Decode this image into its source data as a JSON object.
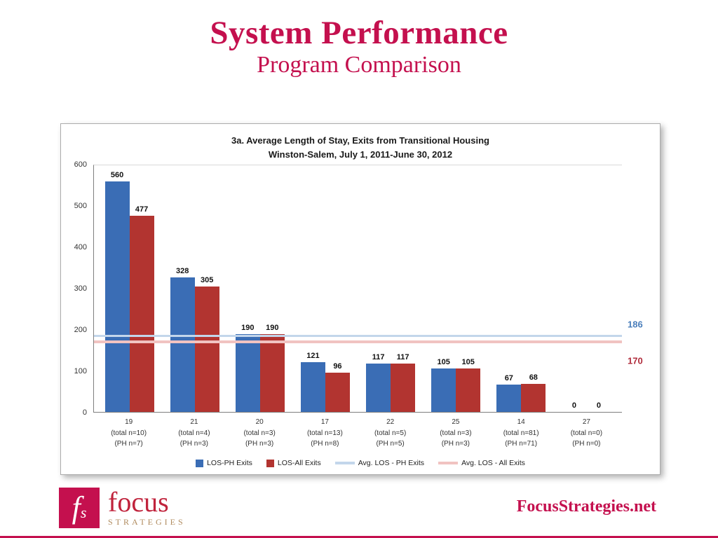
{
  "slide": {
    "title": "System Performance",
    "subtitle": "Program Comparison",
    "site": "FocusStrategies.net",
    "logo": {
      "mark": "fs",
      "focus": "focus",
      "strategies": "STRATEGIES"
    }
  },
  "colors": {
    "brand_crimson": "#C4104E",
    "bar_blue": "#3A6DB5",
    "bar_red": "#B23430",
    "avg_line_blue": "#C3D6EB",
    "avg_line_pink": "#F1C3C1",
    "avg_label_blue": "#4A7EBB",
    "avg_label_red": "#B02C3C",
    "logo_tan": "#B08B5E"
  },
  "chart_data": {
    "type": "bar",
    "title_line1": "3a. Average Length of Stay, Exits from Transitional Housing",
    "title_line2": "Winston-Salem, July 1, 2011-June 30, 2012",
    "ylim": [
      0,
      600
    ],
    "yticks": [
      0,
      100,
      200,
      300,
      400,
      500,
      600
    ],
    "grid": "off",
    "legend_position": "bottom",
    "categories": [
      {
        "id": "19",
        "total": "(total n=10)",
        "ph": "(PH n=7)"
      },
      {
        "id": "21",
        "total": "(total n=4)",
        "ph": "(PH n=3)"
      },
      {
        "id": "20",
        "total": "(total n=3)",
        "ph": "(PH n=3)"
      },
      {
        "id": "17",
        "total": "(total n=13)",
        "ph": "(PH n=8)"
      },
      {
        "id": "22",
        "total": "(total n=5)",
        "ph": "(PH n=5)"
      },
      {
        "id": "25",
        "total": "(total n=3)",
        "ph": "(PH n=3)"
      },
      {
        "id": "14",
        "total": "(total n=81)",
        "ph": "(PH n=71)"
      },
      {
        "id": "27",
        "total": "(total n=0)",
        "ph": "(PH n=0)"
      }
    ],
    "series": [
      {
        "name": "LOS-PH Exits",
        "color": "#3A6DB5",
        "values": [
          560,
          328,
          190,
          121,
          117,
          105,
          67,
          0
        ]
      },
      {
        "name": "LOS-All Exits",
        "color": "#B23430",
        "values": [
          477,
          305,
          190,
          96,
          117,
          105,
          68,
          0
        ]
      }
    ],
    "lines": [
      {
        "name": "Avg. LOS - PH Exits",
        "value": 186,
        "color": "#C3D6EB",
        "label_color": "#4A7EBB"
      },
      {
        "name": "Avg. LOS - All Exits",
        "value": 170,
        "color": "#F1C3C1",
        "label_color": "#B02C3C"
      }
    ]
  }
}
